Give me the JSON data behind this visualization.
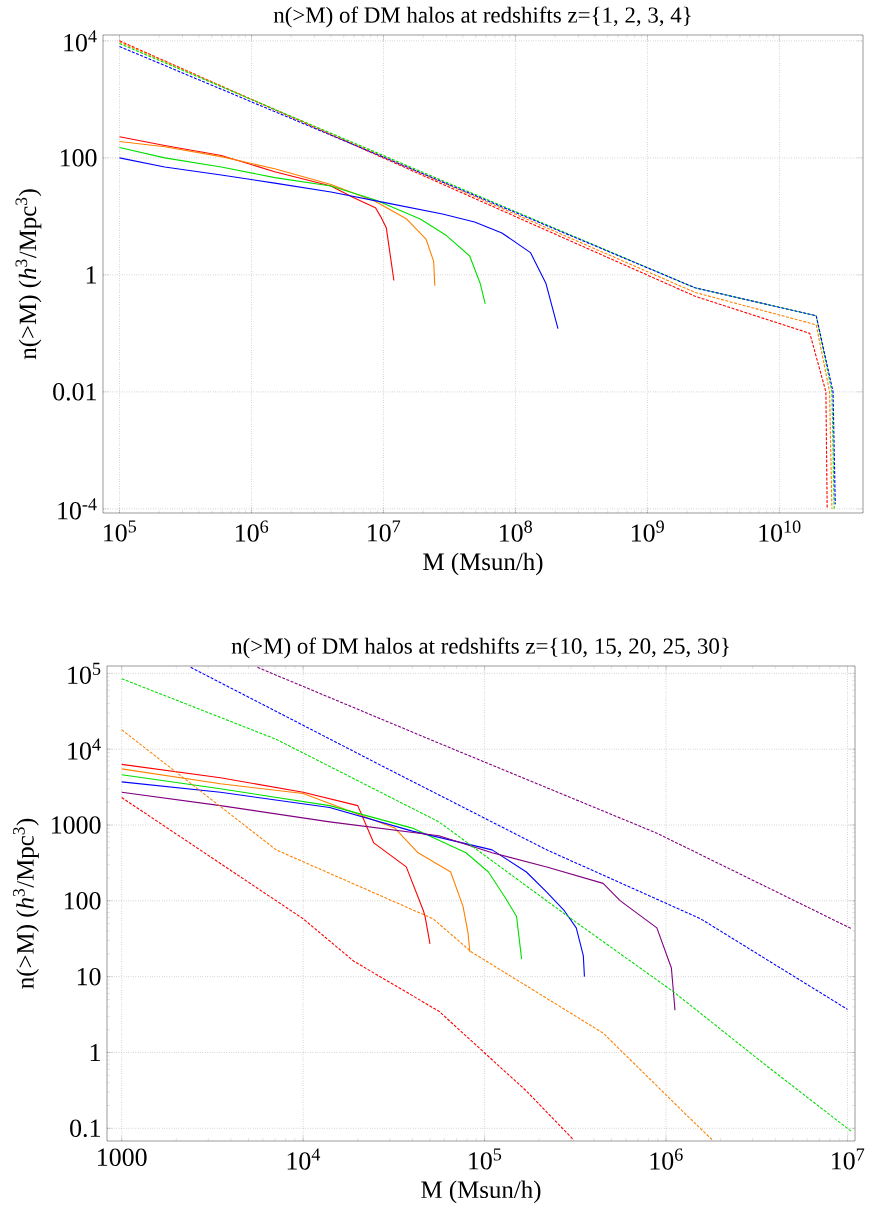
{
  "chart_data": [
    {
      "type": "line",
      "title": "n(>M) of DM halos at redshifts z={1, 2, 3, 4}",
      "xlabel": "M (Msun/h)",
      "ylabel": "n(>M) (*h*$^{3}$/Mpc$^{3}$)",
      "log": "xy",
      "grid": true,
      "xlim": [
        75000,
        43000000000
      ],
      "ylim": [
        8.5e-05,
        12600
      ],
      "xticks": [
        {
          "value": 100000,
          "label": "10$^{5}$"
        },
        {
          "value": 1000000,
          "label": "10$^{6}$"
        },
        {
          "value": 10000000,
          "label": "10$^{7}$"
        },
        {
          "value": 100000000,
          "label": "10$^{8}$"
        },
        {
          "value": 1000000000,
          "label": "10$^{9}$"
        },
        {
          "value": 10000000000,
          "label": "10$^{10}$"
        }
      ],
      "yticks": [
        {
          "value": 0.0001,
          "label": "10$^{-4}$"
        },
        0.01,
        1,
        100,
        {
          "value": 10000,
          "label": "10$^{4}$"
        }
      ],
      "series": [
        {
          "color": "#ff0000",
          "line_style": "solid",
          "x": [
            100000,
            220000,
            590000,
            1500000,
            4000000,
            5900000,
            8700000,
            9500000,
            10500000,
            12000000
          ],
          "values": [
            230,
            163,
            110,
            58,
            33,
            21,
            14,
            10,
            6.4,
            0.8
          ]
        },
        {
          "color": "#ff8000",
          "line_style": "solid",
          "x": [
            100000,
            220000,
            590000,
            1500000,
            4000000,
            8700000,
            15000000,
            21000000,
            24000000,
            24500000
          ],
          "values": [
            190,
            155,
            105,
            65,
            35,
            18,
            9,
            4.1,
            1.7,
            0.65
          ]
        },
        {
          "color": "#00e000",
          "line_style": "solid",
          "x": [
            100000,
            220000,
            590000,
            1500000,
            4000000,
            8700000,
            19000000,
            30000000,
            45000000,
            54000000,
            59000000
          ],
          "values": [
            150,
            100,
            70,
            46,
            33,
            19,
            9,
            4.7,
            2.1,
            0.72,
            0.32
          ]
        },
        {
          "color": "#0000ff",
          "line_style": "solid",
          "x": [
            100000,
            220000,
            590000,
            1500000,
            4000000,
            10500000,
            28000000,
            49000000,
            79000000,
            130000000,
            170000000,
            210000000
          ],
          "values": [
            100,
            70,
            51,
            37,
            26,
            17,
            11,
            8,
            5.2,
            2.4,
            0.72,
            0.12
          ]
        },
        {
          "color": "#ff0000",
          "line_style": "dashed",
          "x": [
            100000,
            2300000000,
            17000000000,
            22500000000,
            23000000000
          ],
          "values": [
            10000,
            0.43,
            0.1,
            0.01,
            0.000105
          ]
        },
        {
          "color": "#ff8000",
          "line_style": "dashed",
          "x": [
            100000,
            2300000000,
            19000000000,
            24000000000,
            25000000000
          ],
          "values": [
            9600,
            0.5,
            0.14,
            0.01,
            0.0001
          ]
        },
        {
          "color": "#00e000",
          "line_style": "dashed",
          "x": [
            100000,
            2300000000,
            19000000000,
            25000000000,
            26000000000
          ],
          "values": [
            9000,
            0.6,
            0.2,
            0.01,
            0.0001
          ]
        },
        {
          "color": "#0000ff",
          "line_style": "dashed",
          "x": [
            100000,
            2300000000,
            19000000000,
            25500000000,
            26500000000
          ],
          "values": [
            8000,
            0.6,
            0.2,
            0.01,
            0.00012
          ]
        }
      ]
    },
    {
      "type": "line",
      "title": "n(>M) of DM halos at redshifts z={10, 15, 20, 25, 30}",
      "xlabel": "M (Msun/h)",
      "ylabel": "n(>M) (*h*$^{3}$/Mpc$^{3}$)",
      "log": "xy",
      "grid": true,
      "xlim": [
        830,
        11000000
      ],
      "ylim": [
        0.068,
        125000
      ],
      "xticks": [
        1000,
        {
          "value": 10000,
          "label": "10$^{4}$"
        },
        {
          "value": 100000,
          "label": "10$^{5}$"
        },
        {
          "value": 1000000,
          "label": "10$^{6}$"
        },
        {
          "value": 10000000,
          "label": "10$^{7}$"
        }
      ],
      "yticks": [
        0.1,
        1,
        10,
        100,
        1000,
        {
          "value": 10000,
          "label": "10$^{4}$"
        },
        {
          "value": 100000,
          "label": "10$^{5}$"
        }
      ],
      "series": [
        {
          "color": "#ff0000",
          "line_style": "solid",
          "x": [
            1000,
            3500,
            10000,
            20000,
            24500,
            37000,
            46000,
            47000,
            50000
          ],
          "values": [
            6300,
            4200,
            2700,
            1800,
            580,
            280,
            74,
            62,
            27
          ]
        },
        {
          "color": "#ff8000",
          "line_style": "solid",
          "x": [
            1000,
            3500,
            10000,
            32000,
            43000,
            65000,
            76000,
            81000,
            83000
          ],
          "values": [
            5500,
            3500,
            2600,
            910,
            430,
            240,
            85,
            38,
            21
          ]
        },
        {
          "color": "#00e000",
          "line_style": "solid",
          "x": [
            1000,
            3500,
            14000,
            40000,
            79000,
            105000,
            130000,
            150000,
            160000
          ],
          "values": [
            4600,
            3000,
            1800,
            910,
            430,
            240,
            110,
            62,
            17
          ]
        },
        {
          "color": "#0000ff",
          "line_style": "solid",
          "x": [
            1000,
            3500,
            14000,
            40000,
            110000,
            170000,
            220000,
            275000,
            320000,
            350000,
            355000
          ],
          "values": [
            3700,
            2700,
            1700,
            830,
            470,
            240,
            130,
            74,
            44,
            19,
            10
          ]
        },
        {
          "color": "#800080",
          "line_style": "solid",
          "x": [
            1000,
            3500,
            14000,
            56000,
            110000,
            220000,
            450000,
            560000,
            890000,
            1070000,
            1120000
          ],
          "values": [
            2700,
            1800,
            1100,
            720,
            430,
            280,
            170,
            100,
            44,
            13,
            3.6
          ]
        },
        {
          "color": "#ff0000",
          "line_style": "dashed",
          "x": [
            1000,
            10000,
            19000,
            56000,
            170000,
            310000
          ],
          "values": [
            2300,
            58,
            16,
            3.5,
            0.31,
            0.07
          ]
        },
        {
          "color": "#ff8000",
          "line_style": "dashed",
          "x": [
            1000,
            7100,
            52000,
            85000,
            450000,
            1260000,
            1800000
          ],
          "values": [
            18000,
            470,
            58,
            21,
            1.8,
            0.16,
            0.07
          ]
        },
        {
          "color": "#00e000",
          "line_style": "dashed",
          "x": [
            1000,
            7100,
            56000,
            300000,
            1100000,
            3600000,
            10500000
          ],
          "values": [
            85000,
            13500,
            1100,
            58,
            6.3,
            0.66,
            0.091
          ]
        },
        {
          "color": "#0000ff",
          "line_style": "dashed",
          "x": [
            2400,
            28000,
            220000,
            1550000,
            10000000
          ],
          "values": [
            120000,
            5800,
            470,
            58,
            3.7
          ]
        },
        {
          "color": "#800080",
          "line_style": "dashed",
          "x": [
            5600,
            56000,
            890000,
            10500000
          ],
          "values": [
            120000,
            12000,
            780,
            43
          ]
        }
      ]
    }
  ]
}
